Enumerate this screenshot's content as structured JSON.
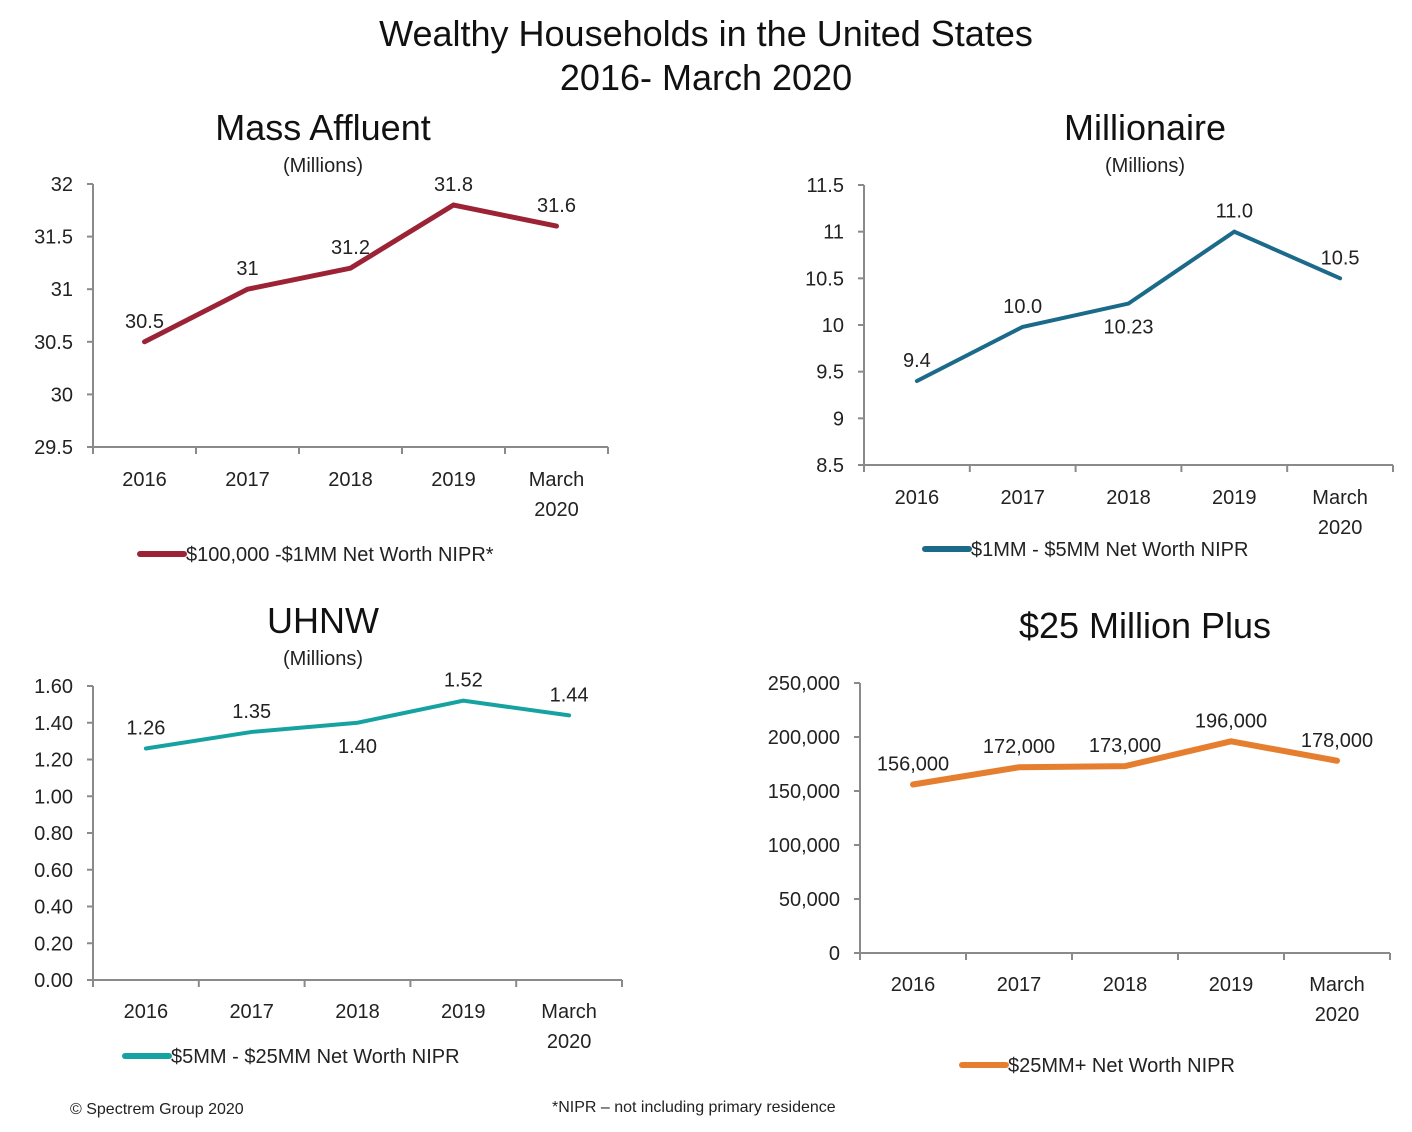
{
  "header": {
    "title_line1": "Wealthy Households in the United States",
    "title_line2": "2016- March 2020"
  },
  "footer": {
    "copyright": "© Spectrem Group 2020",
    "note": "*NIPR – not including primary residence"
  },
  "chart_data": [
    {
      "id": "mass-affluent",
      "type": "line",
      "title": "Mass Affluent",
      "subtitle": "(Millions)",
      "categories": [
        [
          "2016"
        ],
        [
          "2017"
        ],
        [
          "2018"
        ],
        [
          "2019"
        ],
        [
          "March",
          "2020"
        ]
      ],
      "series": [
        {
          "name": "$100,000 -$1MM Net Worth NIPR*",
          "color": "#9b2335",
          "values": [
            30.5,
            31.0,
            31.2,
            31.8,
            31.6
          ],
          "labels": [
            "30.5",
            "31",
            "31.2",
            "31.8",
            "31.6"
          ],
          "label_pos": [
            "above",
            "above",
            "above",
            "above",
            "above"
          ]
        }
      ],
      "yticks": [
        "29.5",
        "30",
        "30.5",
        "31",
        "31.5",
        "32"
      ],
      "ylim": [
        29.5,
        32
      ],
      "legend": "bottom",
      "grid": false
    },
    {
      "id": "millionaire",
      "type": "line",
      "title": "Millionaire",
      "subtitle": "(Millions)",
      "categories": [
        [
          "2016"
        ],
        [
          "2017"
        ],
        [
          "2018"
        ],
        [
          "2019"
        ],
        [
          "March",
          "2020"
        ]
      ],
      "series": [
        {
          "name": "$1MM - $5MM Net Worth NIPR",
          "color": "#1b6a8a",
          "values": [
            9.4,
            9.98,
            10.23,
            11.0,
            10.5
          ],
          "labels": [
            "9.4",
            "10.0",
            "10.23",
            "11.0",
            "10.5"
          ],
          "label_pos": [
            "above",
            "above",
            "below",
            "above",
            "above"
          ]
        }
      ],
      "yticks": [
        "8.5",
        "9",
        "9.5",
        "10",
        "10.5",
        "11",
        "11.5"
      ],
      "ylim": [
        8.5,
        11.5
      ],
      "legend": "bottom",
      "grid": false
    },
    {
      "id": "uhnw",
      "type": "line",
      "title": "UHNW",
      "subtitle": "(Millions)",
      "categories": [
        [
          "2016"
        ],
        [
          "2017"
        ],
        [
          "2018"
        ],
        [
          "2019"
        ],
        [
          "March",
          "2020"
        ]
      ],
      "series": [
        {
          "name": "$5MM - $25MM Net Worth NIPR",
          "color": "#17a2a2",
          "values": [
            1.26,
            1.35,
            1.4,
            1.52,
            1.44
          ],
          "labels": [
            "1.26",
            "1.35",
            "1.40",
            "1.52",
            "1.44"
          ],
          "label_pos": [
            "above",
            "above",
            "below",
            "above",
            "above"
          ]
        }
      ],
      "yticks": [
        "0.00",
        "0.20",
        "0.40",
        "0.60",
        "0.80",
        "1.00",
        "1.20",
        "1.40",
        "1.60"
      ],
      "ylim": [
        0,
        1.6
      ],
      "legend": "bottom",
      "grid": false
    },
    {
      "id": "25-million-plus",
      "type": "line",
      "title": "$25 Million Plus",
      "subtitle": "",
      "categories": [
        [
          "2016"
        ],
        [
          "2017"
        ],
        [
          "2018"
        ],
        [
          "2019"
        ],
        [
          "March",
          "2020"
        ]
      ],
      "series": [
        {
          "name": "$25MM+ Net Worth NIPR",
          "color": "#e57e2e",
          "values": [
            156000,
            172000,
            173000,
            196000,
            178000
          ],
          "labels": [
            "156,000",
            "172,000",
            "173,000",
            "196,000",
            "178,000"
          ],
          "label_pos": [
            "above",
            "above",
            "above",
            "above",
            "above"
          ]
        }
      ],
      "yticks": [
        "0",
        "50,000",
        "100,000",
        "150,000",
        "200,000",
        "250,000"
      ],
      "ylim": [
        0,
        250000
      ],
      "legend": "bottom",
      "grid": false
    }
  ]
}
